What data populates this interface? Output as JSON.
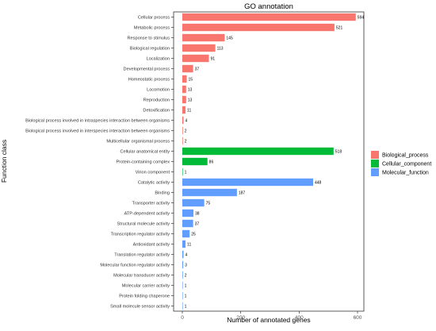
{
  "chart_data": {
    "type": "bar",
    "orientation": "horizontal",
    "title": "GO annotation",
    "xlabel": "Number of annotated genes",
    "ylabel": "Function class",
    "xlim": [
      0,
      630
    ],
    "x_ticks": [
      0,
      200,
      400,
      600
    ],
    "grid": false,
    "legend_position": "right",
    "legend": [
      {
        "name": "Biological_process",
        "color": "#F8766D"
      },
      {
        "name": "Cellular_component",
        "color": "#00BA38"
      },
      {
        "name": "Molecular_function",
        "color": "#619CFF"
      }
    ],
    "categories": [
      "Cellular process",
      "Metabolic process",
      "Response to stimulus",
      "Biological regulation",
      "Localization",
      "Developmental process",
      "Homeostatic process",
      "Locomotion",
      "Reproduction",
      "Detoxification",
      "Biological process involved in intraspecies interaction between organisms",
      "Biological process involved in interspecies interaction between organisms",
      "Multicellular organismal process",
      "Cellular anatomical entity",
      "Protein-containing complex",
      "Virion component",
      "Catalytic activity",
      "Binding",
      "Transporter activity",
      "ATP-dependent activity",
      "Structural molecule activity",
      "Transcription regulator activity",
      "Antioxidant activity",
      "Translation regulator activity",
      "Molecular function regulator activity",
      "Molecular transducer activity",
      "Molecular carrier activity",
      "Protein folding chaperone",
      "Small molecule sensor activity"
    ],
    "values": [
      594,
      521,
      145,
      113,
      91,
      37,
      15,
      13,
      13,
      11,
      4,
      2,
      2,
      518,
      86,
      1,
      448,
      187,
      75,
      38,
      37,
      25,
      11,
      4,
      3,
      2,
      1,
      1,
      1
    ],
    "groups": [
      "Biological_process",
      "Biological_process",
      "Biological_process",
      "Biological_process",
      "Biological_process",
      "Biological_process",
      "Biological_process",
      "Biological_process",
      "Biological_process",
      "Biological_process",
      "Biological_process",
      "Biological_process",
      "Biological_process",
      "Cellular_component",
      "Cellular_component",
      "Cellular_component",
      "Molecular_function",
      "Molecular_function",
      "Molecular_function",
      "Molecular_function",
      "Molecular_function",
      "Molecular_function",
      "Molecular_function",
      "Molecular_function",
      "Molecular_function",
      "Molecular_function",
      "Molecular_function",
      "Molecular_function",
      "Molecular_function"
    ]
  }
}
